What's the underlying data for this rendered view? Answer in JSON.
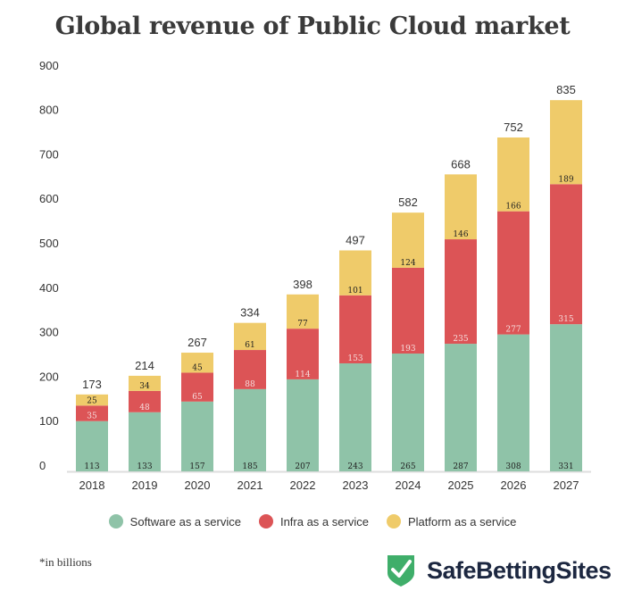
{
  "chart_data": {
    "type": "bar",
    "stacked": true,
    "title": "Global revenue of Public Cloud market",
    "categories": [
      "2018",
      "2019",
      "2020",
      "2021",
      "2022",
      "2023",
      "2024",
      "2025",
      "2026",
      "2027"
    ],
    "series": [
      {
        "name": "Software as a service",
        "color": "#8fc3a8",
        "values": [
          113,
          133,
          157,
          185,
          207,
          243,
          265,
          287,
          308,
          331
        ]
      },
      {
        "name": "Infra as a service",
        "color": "#dc5456",
        "values": [
          35,
          48,
          65,
          88,
          114,
          153,
          193,
          235,
          277,
          315
        ]
      },
      {
        "name": "Platform as a service",
        "color": "#efcb6a",
        "values": [
          25,
          34,
          45,
          61,
          77,
          101,
          124,
          146,
          166,
          189
        ]
      }
    ],
    "totals": [
      173,
      214,
      267,
      334,
      398,
      497,
      582,
      668,
      752,
      835
    ],
    "yticks": [
      0,
      100,
      200,
      300,
      400,
      500,
      600,
      700,
      800,
      900
    ],
    "ylim": [
      0,
      900
    ],
    "xlabel": "",
    "ylabel": "",
    "legend_position": "bottom",
    "grid": false
  },
  "footnote": "*in billions",
  "logo_text": "SafeBettingSites"
}
